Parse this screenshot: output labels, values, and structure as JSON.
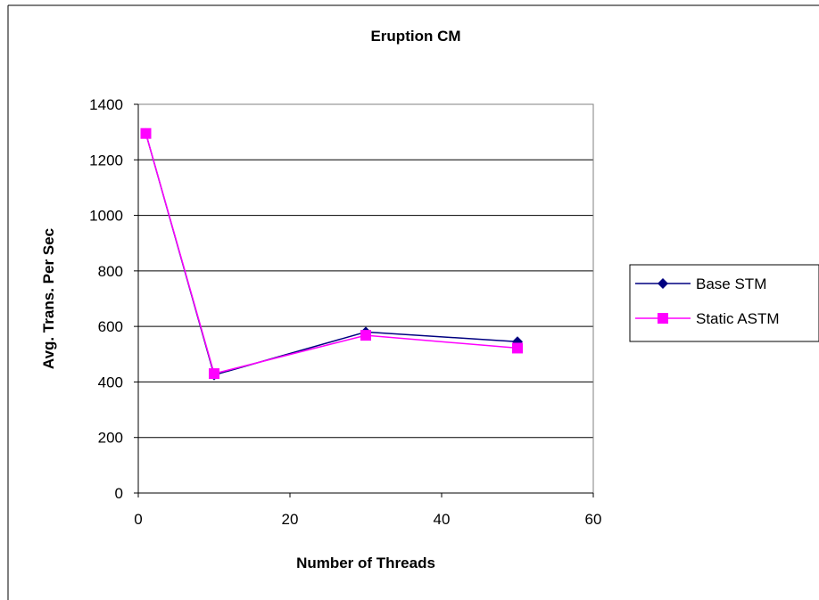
{
  "chart_data": {
    "type": "line",
    "title": "Eruption CM",
    "xlabel": "Number of Threads",
    "ylabel": "Avg. Trans. Per Sec",
    "xlim": [
      0,
      60
    ],
    "ylim": [
      0,
      1400
    ],
    "xticks": [
      0,
      20,
      40,
      60
    ],
    "yticks": [
      0,
      200,
      400,
      600,
      800,
      1000,
      1200,
      1400
    ],
    "grid": "horizontal",
    "legend_position": "right",
    "series": [
      {
        "name": "Base STM",
        "color": "#000080",
        "marker": "diamond",
        "x": [
          1,
          10,
          30,
          50
        ],
        "y": [
          1295,
          425,
          580,
          545
        ]
      },
      {
        "name": "Static ASTM",
        "color": "#ff00ff",
        "marker": "square",
        "x": [
          1,
          10,
          30,
          50
        ],
        "y": [
          1295,
          430,
          568,
          522
        ]
      }
    ]
  }
}
